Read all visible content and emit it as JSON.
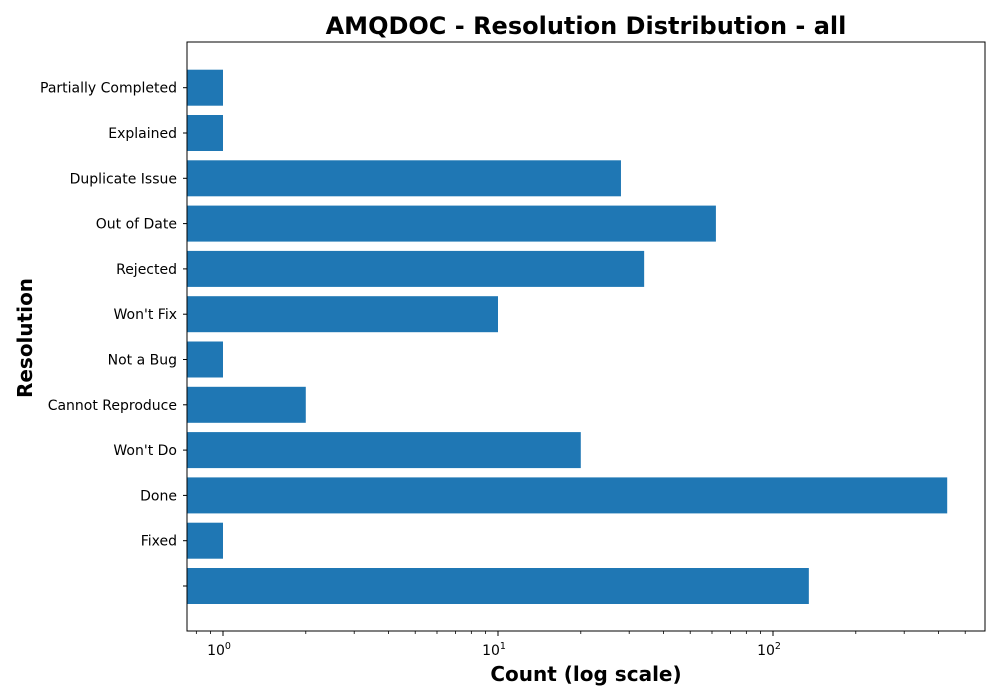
{
  "chart_data": {
    "type": "bar",
    "orientation": "horizontal",
    "title": "AMQDOC - Resolution Distribution - all",
    "xlabel": "Count (log scale)",
    "ylabel": "Resolution",
    "x_scale": "log",
    "x_ticks": [
      {
        "base": "10",
        "exp": "0"
      },
      {
        "base": "10",
        "exp": "1"
      },
      {
        "base": "10",
        "exp": "2"
      }
    ],
    "categories": [
      "",
      "Fixed",
      "Done",
      "Won't Do",
      "Cannot Reproduce",
      "Not a Bug",
      "Won't Fix",
      "Rejected",
      "Out of Date",
      "Duplicate Issue",
      "Explained",
      "Partially Completed"
    ],
    "values": [
      135,
      1,
      430,
      20,
      2,
      1,
      10,
      34,
      62,
      28,
      1,
      1
    ],
    "color": "#1f77b4",
    "grid": false
  }
}
